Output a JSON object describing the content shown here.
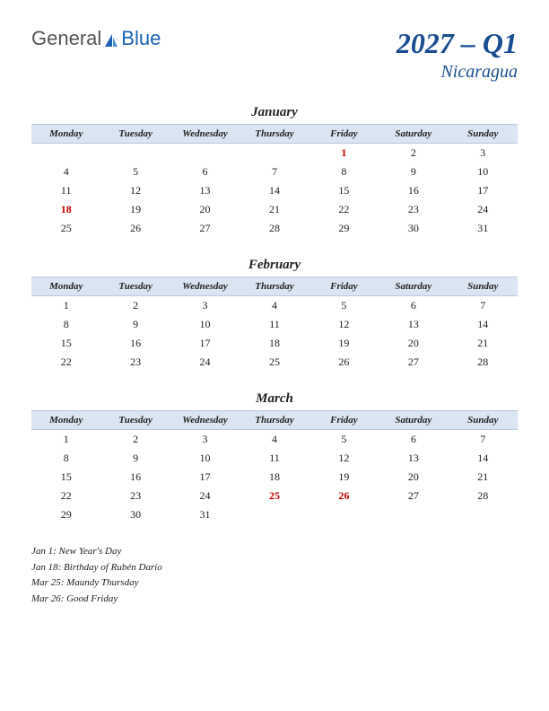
{
  "logo": {
    "part1": "General",
    "part2": "Blue",
    "color_general": "#555555",
    "color_blue": "#1a5fb4"
  },
  "title": {
    "main": "2027 – Q1",
    "sub": "Nicaragua",
    "color": "#1a4d8f",
    "main_fontsize": 32,
    "sub_fontsize": 20
  },
  "weekdays": [
    "Monday",
    "Tuesday",
    "Wednesday",
    "Thursday",
    "Friday",
    "Saturday",
    "Sunday"
  ],
  "header_bg": "#dbe5f1",
  "header_border": "#b8c8dc",
  "holiday_color": "#c00000",
  "text_color": "#222222",
  "months": [
    {
      "name": "January",
      "weeks": [
        [
          "",
          "",
          "",
          "",
          "1",
          "2",
          "3"
        ],
        [
          "4",
          "5",
          "6",
          "7",
          "8",
          "9",
          "10"
        ],
        [
          "11",
          "12",
          "13",
          "14",
          "15",
          "16",
          "17"
        ],
        [
          "18",
          "19",
          "20",
          "21",
          "22",
          "23",
          "24"
        ],
        [
          "25",
          "26",
          "27",
          "28",
          "29",
          "30",
          "31"
        ]
      ],
      "holidays": [
        "1",
        "18"
      ]
    },
    {
      "name": "February",
      "weeks": [
        [
          "1",
          "2",
          "3",
          "4",
          "5",
          "6",
          "7"
        ],
        [
          "8",
          "9",
          "10",
          "11",
          "12",
          "13",
          "14"
        ],
        [
          "15",
          "16",
          "17",
          "18",
          "19",
          "20",
          "21"
        ],
        [
          "22",
          "23",
          "24",
          "25",
          "26",
          "27",
          "28"
        ]
      ],
      "holidays": []
    },
    {
      "name": "March",
      "weeks": [
        [
          "1",
          "2",
          "3",
          "4",
          "5",
          "6",
          "7"
        ],
        [
          "8",
          "9",
          "10",
          "11",
          "12",
          "13",
          "14"
        ],
        [
          "15",
          "16",
          "17",
          "18",
          "19",
          "20",
          "21"
        ],
        [
          "22",
          "23",
          "24",
          "25",
          "26",
          "27",
          "28"
        ],
        [
          "29",
          "30",
          "31",
          "",
          "",
          "",
          ""
        ]
      ],
      "holidays": [
        "25",
        "26"
      ]
    }
  ],
  "holiday_list": [
    "Jan 1: New Year's Day",
    "Jan 18: Birthday of Rubén Darío",
    "Mar 25: Maundy Thursday",
    "Mar 26: Good Friday"
  ]
}
